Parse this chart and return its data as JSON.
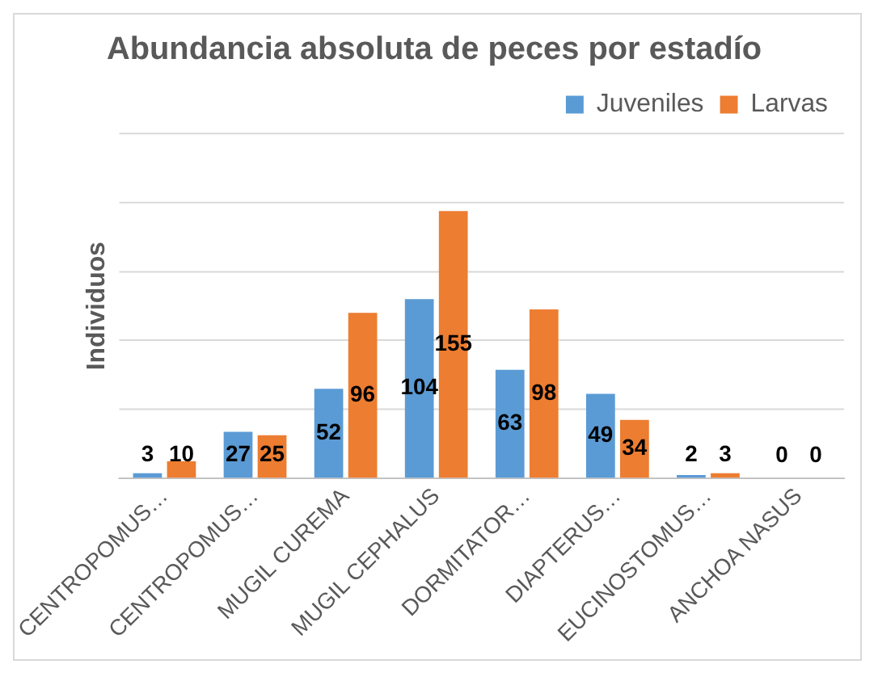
{
  "chart_data": {
    "type": "bar",
    "title": "Abundancia absoluta de peces por estadío",
    "ylabel": "Individuos",
    "categories": [
      "CENTROPOMUS…",
      "CENTROPOMUS…",
      "MUGIL CUREMA",
      "MUGIL CEPHALUS",
      "DORMITATOR…",
      "DIAPTERUS…",
      "EUCINOSTOMUS…",
      "ANCHOA NASUS"
    ],
    "series": [
      {
        "name": "Juveniles",
        "color": "#5b9bd5",
        "values": [
          3,
          27,
          52,
          104,
          63,
          49,
          2,
          0
        ]
      },
      {
        "name": "Larvas",
        "color": "#ed7d31",
        "values": [
          10,
          25,
          96,
          155,
          98,
          34,
          3,
          0
        ]
      }
    ],
    "ylim": [
      0,
      200
    ],
    "yticks": [
      {
        "value": 0,
        "label": null
      },
      {
        "value": 40,
        "label": null
      },
      {
        "value": 80,
        "label": null
      },
      {
        "value": 120,
        "label": null
      },
      {
        "value": 160,
        "label": null
      },
      {
        "value": 200,
        "label": null
      }
    ],
    "tick_labels": "x",
    "grid": "y",
    "legend": "top right",
    "data_labels": true
  }
}
